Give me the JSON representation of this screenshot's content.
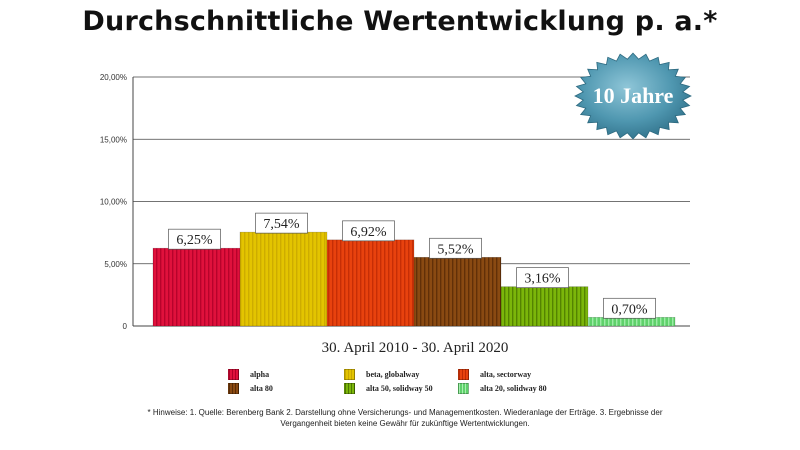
{
  "chart_data": {
    "type": "bar",
    "title": "Durchschnittliche Wertentwicklung p. a.*",
    "badge": "10 Jahre",
    "xlabel": "30. April 2010 - 30. April 2020",
    "ylabel": "",
    "ylim": [
      0,
      20
    ],
    "y_ticks": [
      {
        "value": 0,
        "label": "0"
      },
      {
        "value": 5,
        "label": "5,00%"
      },
      {
        "value": 10,
        "label": "10,00%"
      },
      {
        "value": 15,
        "label": "15,00%"
      },
      {
        "value": 20,
        "label": "20,00%"
      }
    ],
    "categories": [
      "alpha",
      "beta, globalway",
      "alta, sectorway",
      "alta 80",
      "alta 50, solidway 50",
      "alta 20, solidway 80"
    ],
    "values": [
      6.25,
      7.54,
      6.92,
      5.52,
      3.16,
      0.7
    ],
    "value_labels": [
      "6,25%",
      "7,54%",
      "6,92%",
      "5,52%",
      "3,16%",
      "0,70%"
    ],
    "colors": [
      "#e0113c",
      "#e3c400",
      "#e8420e",
      "#8a4a12",
      "#7bb60a",
      "#5fd16b"
    ],
    "stripe_colors": [
      "#b00028",
      "#c9a800",
      "#c02a05",
      "#5a2c06",
      "#4e7a00",
      "#a8f0b0"
    ],
    "legend": [
      {
        "label": "alpha"
      },
      {
        "label": "beta, globalway"
      },
      {
        "label": "alta, sectorway"
      },
      {
        "label": "alta 80"
      },
      {
        "label": "alta 50, solidway 50"
      },
      {
        "label": "alta 20, solidway 80"
      }
    ],
    "grid": true,
    "legend_position": "bottom"
  },
  "footnote_line1": "* Hinweise: 1. Quelle: Berenberg Bank  2. Darstellung ohne Versicherungs- und Managementkosten. Wiederanlage der Erträge.  3. Ergebnisse der",
  "footnote_line2": "Vergangenheit bieten keine Gewähr für zukünftige Wertentwicklungen."
}
